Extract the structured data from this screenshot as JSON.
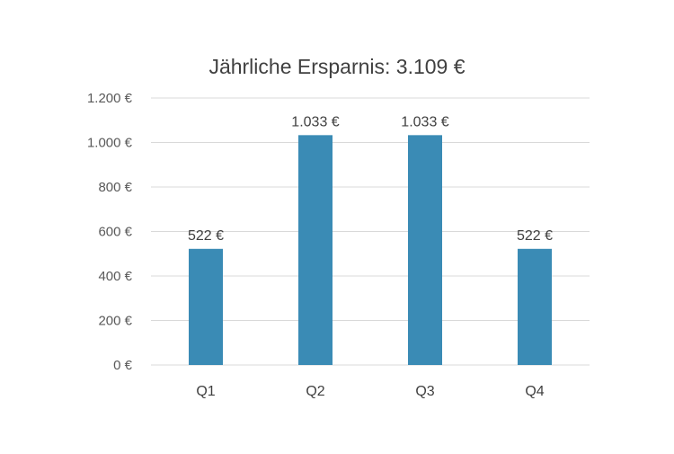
{
  "chart_data": {
    "type": "bar",
    "title": "Jährliche Ersparnis: 3.109 €",
    "xlabel": "",
    "ylabel": "",
    "categories": [
      "Q1",
      "Q2",
      "Q3",
      "Q4"
    ],
    "values": [
      522,
      1033,
      1033,
      522
    ],
    "data_labels": [
      "522 €",
      "1.033 €",
      "1.033 €",
      "522 €"
    ],
    "y_ticks": [
      0,
      200,
      400,
      600,
      800,
      1000,
      1200
    ],
    "y_tick_labels": [
      "0 €",
      "200 €",
      "400 €",
      "600 €",
      "800 €",
      "1.000 €",
      "1.200 €"
    ],
    "ylim": [
      0,
      1200
    ],
    "grid": true,
    "legend": "none",
    "bar_color": "#3a8bb5"
  }
}
